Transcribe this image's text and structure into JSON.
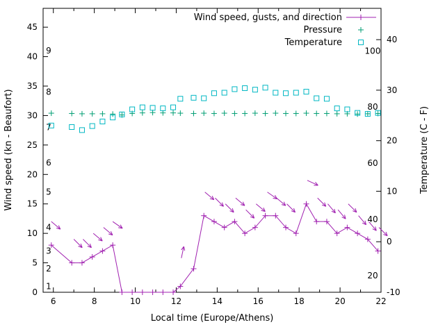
{
  "figure": {
    "background": "#ffffff",
    "text_color": "#000000"
  },
  "chart_data": {
    "type": "line",
    "xlabel": "Local time (Europe/Athens)",
    "ylabel_left": "Wind speed (kn - Beaufort)",
    "ylabel_right": "Temperature (C - F)",
    "x_range": [
      5.5,
      22
    ],
    "x_ticks": [
      6,
      8,
      10,
      12,
      14,
      16,
      18,
      20,
      22
    ],
    "x_minor_step": 1,
    "y_left_range": [
      0,
      48.2
    ],
    "y_left_ticks": [
      0,
      5,
      10,
      15,
      20,
      25,
      30,
      35,
      40,
      45
    ],
    "y_right_range": [
      -10,
      46.2
    ],
    "y_right_ticks": [
      -10,
      0,
      10,
      20,
      30,
      40
    ],
    "beaufort_labels": [
      {
        "label": "1",
        "kn": 1
      },
      {
        "label": "2",
        "kn": 4
      },
      {
        "label": "3",
        "kn": 7
      },
      {
        "label": "4",
        "kn": 11
      },
      {
        "label": "5",
        "kn": 17
      },
      {
        "label": "6",
        "kn": 22
      },
      {
        "label": "7",
        "kn": 28
      },
      {
        "label": "8",
        "kn": 34
      },
      {
        "label": "9",
        "kn": 41
      }
    ],
    "fahrenheit_labels": [
      {
        "label": "20",
        "c": -6.67
      },
      {
        "label": "40",
        "c": 4.44
      },
      {
        "label": "60",
        "c": 15.56
      },
      {
        "label": "80",
        "c": 26.67
      },
      {
        "label": "100",
        "c": 37.78
      }
    ],
    "legend": [
      {
        "label": "Wind speed, gusts, and direction",
        "series": "wind_speed",
        "color": "#a020b0",
        "marker": "plus-line"
      },
      {
        "label": "Pressure",
        "series": "pressure",
        "color": "#009e73",
        "marker": "plus"
      },
      {
        "label": "Temperature",
        "series": "temperature",
        "color": "#00b7c3",
        "marker": "square"
      }
    ],
    "series": {
      "wind_speed": {
        "axis": "left",
        "units": "kn",
        "color": "#a020b0",
        "x": [
          5.9,
          6.9,
          7.4,
          7.9,
          8.4,
          8.9,
          9.35,
          9.85,
          10.35,
          10.85,
          11.35,
          11.85,
          12.2,
          12.85,
          13.35,
          13.85,
          14.35,
          14.85,
          15.35,
          15.85,
          16.35,
          16.85,
          17.35,
          17.85,
          18.35,
          18.85,
          19.35,
          19.85,
          20.35,
          20.85,
          21.35,
          21.85
        ],
        "y": [
          8,
          5,
          5,
          6,
          7,
          8,
          0,
          0,
          0,
          0,
          0,
          0,
          1,
          4,
          13,
          12,
          11,
          12,
          10,
          11,
          13,
          13,
          11,
          10,
          15,
          12,
          12,
          10,
          11,
          10,
          9,
          7
        ]
      },
      "gusts": {
        "axis": "left",
        "units": "kn",
        "color": "#a020b0",
        "x": [
          5.9,
          7.0,
          7.45,
          7.95,
          8.45,
          8.9,
          12.25,
          13.4,
          13.9,
          14.4,
          14.9,
          15.4,
          15.9,
          16.45,
          16.9,
          17.4,
          18.4,
          18.9,
          19.4,
          19.9,
          20.4,
          20.9,
          21.4,
          21.9
        ],
        "y": [
          12,
          9,
          9,
          10,
          11,
          12,
          5.8,
          17,
          16,
          15,
          16,
          14,
          15,
          17,
          16,
          15,
          19,
          16,
          15,
          14,
          15,
          13,
          12,
          11
        ],
        "angle_deg": [
          -40,
          -45,
          -45,
          -40,
          -40,
          -35,
          78,
          -40,
          -45,
          -45,
          -40,
          -45,
          -40,
          -35,
          -40,
          -45,
          -25,
          -45,
          -50,
          -50,
          -45,
          -50,
          -50,
          -45
        ]
      },
      "pressure": {
        "axis": "left",
        "units": "inHg",
        "color": "#009e73",
        "x": [
          5.9,
          6.9,
          7.4,
          7.9,
          8.4,
          8.9,
          9.35,
          9.85,
          10.35,
          10.85,
          11.35,
          11.85,
          12.2,
          12.85,
          13.35,
          13.85,
          14.35,
          14.85,
          15.35,
          15.85,
          16.35,
          16.85,
          17.35,
          17.85,
          18.35,
          18.85,
          19.35,
          19.85,
          20.35,
          20.85,
          21.35,
          21.85
        ],
        "y": [
          30.4,
          30.35,
          30.3,
          30.3,
          30.3,
          30.25,
          30.1,
          30.35,
          30.45,
          30.5,
          30.45,
          30.45,
          30.4,
          30.35,
          30.4,
          30.35,
          30.4,
          30.35,
          30.35,
          30.4,
          30.35,
          30.4,
          30.35,
          30.35,
          30.4,
          30.35,
          30.35,
          30.3,
          30.3,
          30.25,
          30.3,
          30.35
        ]
      },
      "temperature": {
        "axis": "right",
        "units": "C",
        "color": "#00b7c3",
        "x": [
          5.9,
          6.9,
          7.4,
          7.9,
          8.4,
          8.9,
          9.35,
          9.85,
          10.35,
          10.85,
          11.35,
          11.85,
          12.2,
          12.85,
          13.35,
          13.85,
          14.35,
          14.85,
          15.35,
          15.85,
          16.35,
          16.85,
          17.35,
          17.85,
          18.35,
          18.85,
          19.35,
          19.85,
          20.35,
          20.85,
          21.35,
          21.85
        ],
        "y": [
          23.0,
          22.7,
          22.1,
          22.9,
          23.8,
          24.6,
          25.2,
          26.2,
          26.6,
          26.5,
          26.4,
          26.6,
          28.3,
          28.5,
          28.4,
          29.4,
          29.5,
          30.2,
          30.4,
          30.1,
          30.5,
          29.5,
          29.4,
          29.5,
          29.7,
          28.4,
          28.3,
          26.4,
          26.2,
          25.5,
          25.3,
          25.5
        ]
      }
    }
  }
}
